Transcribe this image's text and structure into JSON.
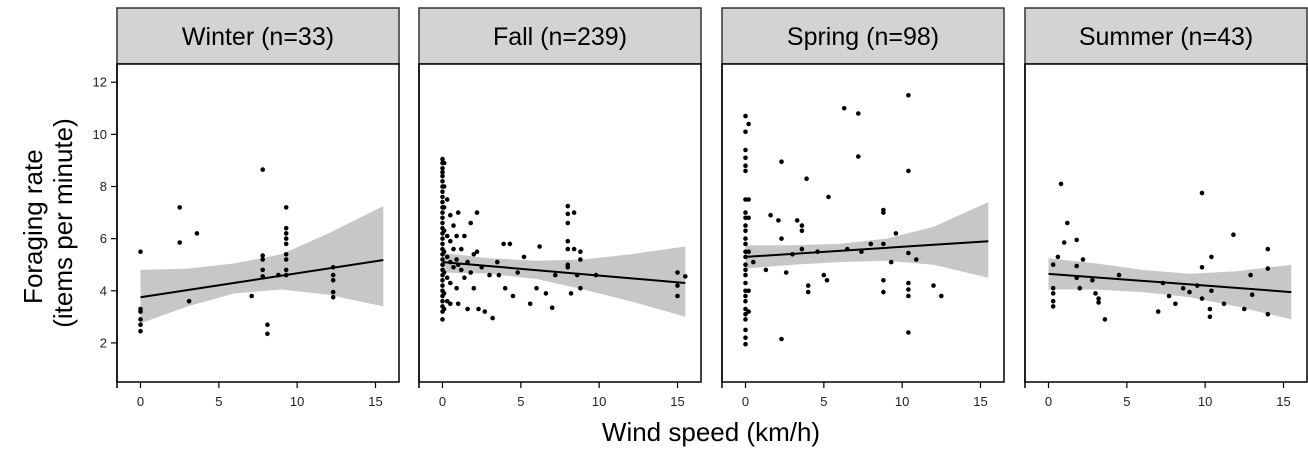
{
  "chart_data": {
    "type": "scatter",
    "xlabel": "Wind speed (km/h)",
    "ylabel_lines": [
      "Foraging rate",
      "(items per minute)"
    ],
    "xlim": [
      -1.5,
      16.5
    ],
    "ylim": [
      0.5,
      12.7
    ],
    "x_ticks": [
      0,
      5,
      10,
      15
    ],
    "y_ticks": [
      2,
      4,
      6,
      8,
      10,
      12
    ],
    "grid": false,
    "colors": {
      "points": "#000000",
      "ribbon": "#bdbdbd",
      "strip": "#d3d3d3",
      "line": "#000000"
    },
    "panels": [
      {
        "label": "Winter (n=33)",
        "fit": {
          "x": [
            0,
            15.5
          ],
          "y": [
            3.75,
            5.18
          ]
        },
        "ribbon": {
          "x": [
            0,
            3,
            6,
            9,
            12,
            15.5
          ],
          "lower": [
            2.75,
            3.4,
            3.9,
            4.05,
            3.85,
            3.4
          ],
          "upper": [
            4.8,
            4.85,
            5.05,
            5.4,
            6.2,
            7.25
          ]
        },
        "points": [
          [
            0,
            5.5
          ],
          [
            0,
            3.3
          ],
          [
            0,
            3.2
          ],
          [
            0,
            2.9
          ],
          [
            0,
            2.7
          ],
          [
            0,
            2.45
          ],
          [
            2.5,
            7.2
          ],
          [
            2.5,
            5.85
          ],
          [
            3.6,
            6.2
          ],
          [
            3.1,
            3.6
          ],
          [
            7.1,
            3.8
          ],
          [
            7.8,
            8.65
          ],
          [
            7.8,
            5.35
          ],
          [
            7.8,
            5.2
          ],
          [
            7.8,
            4.8
          ],
          [
            7.8,
            4.55
          ],
          [
            8.1,
            2.7
          ],
          [
            8.1,
            2.35
          ],
          [
            8.8,
            4.6
          ],
          [
            9.3,
            7.2
          ],
          [
            9.3,
            6.4
          ],
          [
            9.3,
            6.2
          ],
          [
            9.3,
            6.0
          ],
          [
            9.3,
            5.8
          ],
          [
            9.3,
            5.4
          ],
          [
            9.3,
            5.2
          ],
          [
            9.3,
            4.8
          ],
          [
            9.3,
            4.6
          ],
          [
            12.3,
            4.9
          ],
          [
            12.3,
            4.6
          ],
          [
            12.3,
            4.4
          ],
          [
            12.3,
            3.95
          ],
          [
            12.3,
            3.75
          ]
        ]
      },
      {
        "label": "Fall (n=239)",
        "fit": {
          "x": [
            0,
            15.5
          ],
          "y": [
            5.1,
            4.3
          ]
        },
        "ribbon": {
          "x": [
            0,
            3,
            6,
            9,
            12,
            15.5
          ],
          "lower": [
            4.7,
            4.65,
            4.45,
            4.05,
            3.6,
            3.0
          ],
          "upper": [
            5.45,
            5.25,
            5.15,
            5.2,
            5.4,
            5.7
          ]
        },
        "points": [
          [
            0,
            9.05
          ],
          [
            0,
            8.9
          ],
          [
            0,
            8.7
          ],
          [
            0,
            8.55
          ],
          [
            0,
            8.4
          ],
          [
            0,
            8.2
          ],
          [
            0,
            8.0
          ],
          [
            0,
            7.8
          ],
          [
            0,
            7.6
          ],
          [
            0,
            7.4
          ],
          [
            0,
            7.2
          ],
          [
            0,
            7.0
          ],
          [
            0,
            6.8
          ],
          [
            0,
            6.6
          ],
          [
            0,
            6.4
          ],
          [
            0,
            6.2
          ],
          [
            0,
            6.0
          ],
          [
            0,
            5.8
          ],
          [
            0,
            5.6
          ],
          [
            0,
            5.4
          ],
          [
            0,
            5.2
          ],
          [
            0,
            5.0
          ],
          [
            0,
            4.8
          ],
          [
            0,
            4.6
          ],
          [
            0,
            4.4
          ],
          [
            0,
            4.2
          ],
          [
            0,
            4.0
          ],
          [
            0,
            3.8
          ],
          [
            0,
            3.6
          ],
          [
            0,
            3.4
          ],
          [
            0,
            3.2
          ],
          [
            0,
            2.9
          ],
          [
            0.1,
            8.9
          ],
          [
            0.1,
            8.0
          ],
          [
            0.1,
            7.2
          ],
          [
            0.1,
            6.3
          ],
          [
            0.1,
            5.5
          ],
          [
            0.1,
            4.7
          ],
          [
            0.1,
            3.9
          ],
          [
            0.1,
            3.3
          ],
          [
            0.3,
            7.5
          ],
          [
            0.3,
            6.1
          ],
          [
            0.3,
            5.3
          ],
          [
            0.3,
            4.5
          ],
          [
            0.3,
            3.6
          ],
          [
            0.5,
            6.9
          ],
          [
            0.5,
            5.9
          ],
          [
            0.5,
            5.1
          ],
          [
            0.5,
            4.3
          ],
          [
            0.5,
            3.5
          ],
          [
            0.7,
            6.5
          ],
          [
            0.7,
            5.6
          ],
          [
            0.7,
            4.9
          ],
          [
            0.9,
            6.1
          ],
          [
            0.9,
            5.2
          ],
          [
            0.9,
            4.1
          ],
          [
            1.0,
            7.0
          ],
          [
            1.0,
            5.0
          ],
          [
            1.0,
            3.5
          ],
          [
            1.2,
            5.6
          ],
          [
            1.2,
            4.8
          ],
          [
            1.4,
            6.1
          ],
          [
            1.4,
            4.5
          ],
          [
            1.6,
            5.1
          ],
          [
            1.6,
            3.3
          ],
          [
            1.8,
            6.6
          ],
          [
            1.8,
            4.7
          ],
          [
            2.0,
            5.4
          ],
          [
            2.0,
            4.1
          ],
          [
            2.2,
            7.0
          ],
          [
            2.2,
            5.5
          ],
          [
            2.3,
            3.3
          ],
          [
            2.5,
            4.9
          ],
          [
            2.7,
            3.2
          ],
          [
            3.0,
            4.6
          ],
          [
            3.2,
            2.95
          ],
          [
            3.5,
            5.1
          ],
          [
            3.6,
            4.6
          ],
          [
            3.9,
            5.8
          ],
          [
            4.0,
            4.1
          ],
          [
            4.3,
            5.8
          ],
          [
            4.5,
            3.8
          ],
          [
            4.8,
            4.7
          ],
          [
            5.2,
            5.3
          ],
          [
            5.6,
            3.5
          ],
          [
            6.0,
            4.1
          ],
          [
            6.2,
            5.7
          ],
          [
            6.6,
            3.9
          ],
          [
            7.0,
            3.35
          ],
          [
            7.2,
            4.6
          ],
          [
            8.0,
            7.25
          ],
          [
            8.0,
            6.95
          ],
          [
            8.0,
            6.6
          ],
          [
            8.0,
            5.9
          ],
          [
            8.0,
            5.6
          ],
          [
            8.0,
            5.0
          ],
          [
            8.0,
            4.9
          ],
          [
            8.2,
            3.9
          ],
          [
            8.4,
            7.0
          ],
          [
            8.4,
            5.6
          ],
          [
            8.6,
            4.6
          ],
          [
            8.8,
            5.5
          ],
          [
            8.8,
            5.2
          ],
          [
            8.8,
            4.1
          ],
          [
            9.8,
            4.6
          ],
          [
            15.0,
            4.7
          ],
          [
            15.0,
            4.2
          ],
          [
            15.0,
            3.8
          ],
          [
            15.5,
            4.55
          ]
        ]
      },
      {
        "label": "Spring (n=98)",
        "fit": {
          "x": [
            0,
            15.5
          ],
          "y": [
            5.3,
            5.9
          ]
        },
        "ribbon": {
          "x": [
            0,
            3,
            6,
            9,
            12,
            15.5
          ],
          "lower": [
            4.85,
            5.0,
            5.1,
            5.15,
            5.0,
            4.5
          ],
          "upper": [
            5.75,
            5.75,
            5.8,
            6.0,
            6.45,
            7.4
          ]
        },
        "points": [
          [
            0,
            10.7
          ],
          [
            0,
            10.1
          ],
          [
            0,
            9.4
          ],
          [
            0,
            9.1
          ],
          [
            0,
            8.8
          ],
          [
            0,
            8.6
          ],
          [
            0,
            7.5
          ],
          [
            0,
            7.0
          ],
          [
            0,
            6.8
          ],
          [
            0,
            6.5
          ],
          [
            0,
            6.3
          ],
          [
            0,
            6.0
          ],
          [
            0,
            5.8
          ],
          [
            0,
            5.5
          ],
          [
            0,
            5.3
          ],
          [
            0,
            5.0
          ],
          [
            0,
            4.8
          ],
          [
            0,
            4.6
          ],
          [
            0,
            4.3
          ],
          [
            0,
            4.0
          ],
          [
            0,
            3.8
          ],
          [
            0,
            3.6
          ],
          [
            0,
            3.3
          ],
          [
            0,
            3.1
          ],
          [
            0,
            2.9
          ],
          [
            0,
            2.5
          ],
          [
            0,
            2.2
          ],
          [
            0,
            1.95
          ],
          [
            0.2,
            10.4
          ],
          [
            0.2,
            7.5
          ],
          [
            0.2,
            6.8
          ],
          [
            0.2,
            5.5
          ],
          [
            0.2,
            4.0
          ],
          [
            0.2,
            3.2
          ],
          [
            0.5,
            5.1
          ],
          [
            1.3,
            4.8
          ],
          [
            1.6,
            6.9
          ],
          [
            2.1,
            6.7
          ],
          [
            2.3,
            8.95
          ],
          [
            2.3,
            6.0
          ],
          [
            2.3,
            2.15
          ],
          [
            2.6,
            4.7
          ],
          [
            3.0,
            5.4
          ],
          [
            3.3,
            6.7
          ],
          [
            3.6,
            6.5
          ],
          [
            3.6,
            6.3
          ],
          [
            3.6,
            5.6
          ],
          [
            3.9,
            8.3
          ],
          [
            4.0,
            4.2
          ],
          [
            4.0,
            3.95
          ],
          [
            4.6,
            5.5
          ],
          [
            5.0,
            4.6
          ],
          [
            5.2,
            4.4
          ],
          [
            5.3,
            7.6
          ],
          [
            6.3,
            11.0
          ],
          [
            6.5,
            5.6
          ],
          [
            7.2,
            10.8
          ],
          [
            7.2,
            9.15
          ],
          [
            7.4,
            5.5
          ],
          [
            8.0,
            5.8
          ],
          [
            8.8,
            7.0
          ],
          [
            8.8,
            7.1
          ],
          [
            8.8,
            5.8
          ],
          [
            8.8,
            4.4
          ],
          [
            8.8,
            3.95
          ],
          [
            9.3,
            5.1
          ],
          [
            9.6,
            6.2
          ],
          [
            10.4,
            11.5
          ],
          [
            10.4,
            8.6
          ],
          [
            10.4,
            5.45
          ],
          [
            10.4,
            4.3
          ],
          [
            10.4,
            4.05
          ],
          [
            10.4,
            3.8
          ],
          [
            10.4,
            2.4
          ],
          [
            10.9,
            5.2
          ],
          [
            12.0,
            4.2
          ],
          [
            12.5,
            3.8
          ]
        ]
      },
      {
        "label": "Summer (n=43)",
        "fit": {
          "x": [
            0,
            15.5
          ],
          "y": [
            4.65,
            3.95
          ]
        },
        "ribbon": {
          "x": [
            0,
            3,
            6,
            9,
            12,
            15.5
          ],
          "lower": [
            4.05,
            4.05,
            3.95,
            3.75,
            3.4,
            2.9
          ],
          "upper": [
            5.25,
            5.05,
            4.8,
            4.65,
            4.75,
            5.0
          ]
        },
        "points": [
          [
            0.3,
            5.0
          ],
          [
            0.3,
            4.1
          ],
          [
            0.3,
            3.9
          ],
          [
            0.3,
            3.6
          ],
          [
            0.3,
            3.4
          ],
          [
            0.6,
            5.3
          ],
          [
            0.8,
            8.1
          ],
          [
            1.0,
            5.85
          ],
          [
            1.2,
            6.6
          ],
          [
            1.8,
            5.95
          ],
          [
            1.8,
            4.95
          ],
          [
            1.8,
            4.5
          ],
          [
            2.0,
            4.1
          ],
          [
            2.2,
            5.2
          ],
          [
            2.8,
            4.4
          ],
          [
            3.0,
            3.9
          ],
          [
            3.2,
            3.7
          ],
          [
            3.2,
            3.55
          ],
          [
            3.6,
            2.9
          ],
          [
            4.5,
            4.6
          ],
          [
            7.0,
            3.2
          ],
          [
            7.3,
            4.3
          ],
          [
            7.7,
            3.8
          ],
          [
            8.1,
            3.5
          ],
          [
            8.6,
            4.1
          ],
          [
            9.0,
            3.95
          ],
          [
            9.5,
            4.2
          ],
          [
            9.8,
            7.75
          ],
          [
            9.8,
            4.9
          ],
          [
            9.8,
            3.7
          ],
          [
            10.3,
            3.3
          ],
          [
            10.3,
            3.0
          ],
          [
            10.4,
            4.0
          ],
          [
            10.4,
            5.3
          ],
          [
            11.2,
            3.5
          ],
          [
            11.8,
            6.15
          ],
          [
            12.5,
            3.3
          ],
          [
            12.9,
            4.6
          ],
          [
            13.0,
            3.85
          ],
          [
            14.0,
            5.6
          ],
          [
            14.0,
            4.85
          ],
          [
            14.0,
            3.1
          ]
        ]
      }
    ]
  }
}
